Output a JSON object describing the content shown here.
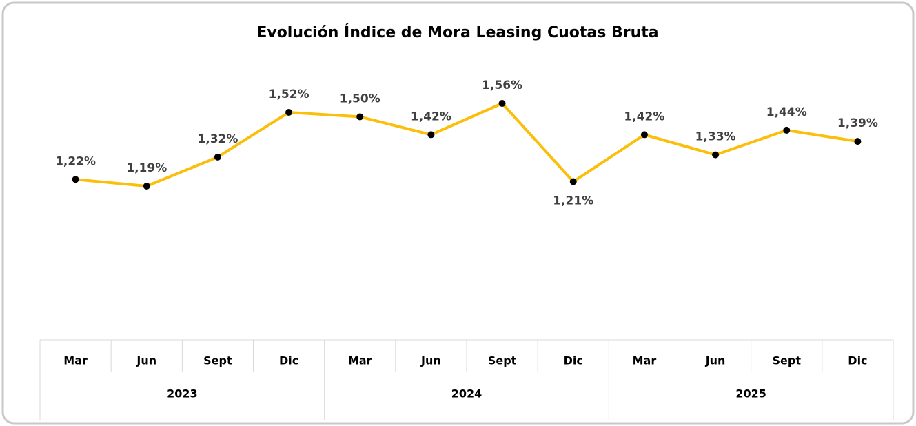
{
  "chart_data": {
    "type": "line",
    "title": "Evolución Índice de Mora Leasing Cuotas Bruta",
    "categories": [
      "Mar",
      "Jun",
      "Sept",
      "Dic",
      "Mar",
      "Jun",
      "Sept",
      "Dic",
      "Mar",
      "Jun",
      "Sept",
      "Dic"
    ],
    "category_groups": [
      "2023",
      "2024",
      "2025"
    ],
    "series": [
      {
        "color": "#fbbf0a",
        "marker_color": "#000000",
        "values": [
          1.22,
          1.19,
          1.32,
          1.52,
          1.5,
          1.42,
          1.56,
          1.21,
          1.42,
          1.33,
          1.44,
          1.39
        ],
        "value_labels": [
          "1,22%",
          "1,19%",
          "1,32%",
          "1,52%",
          "1,50%",
          "1,42%",
          "1,56%",
          "1,21%",
          "1,42%",
          "1,33%",
          "1,44%",
          "1,39%"
        ]
      }
    ]
  }
}
